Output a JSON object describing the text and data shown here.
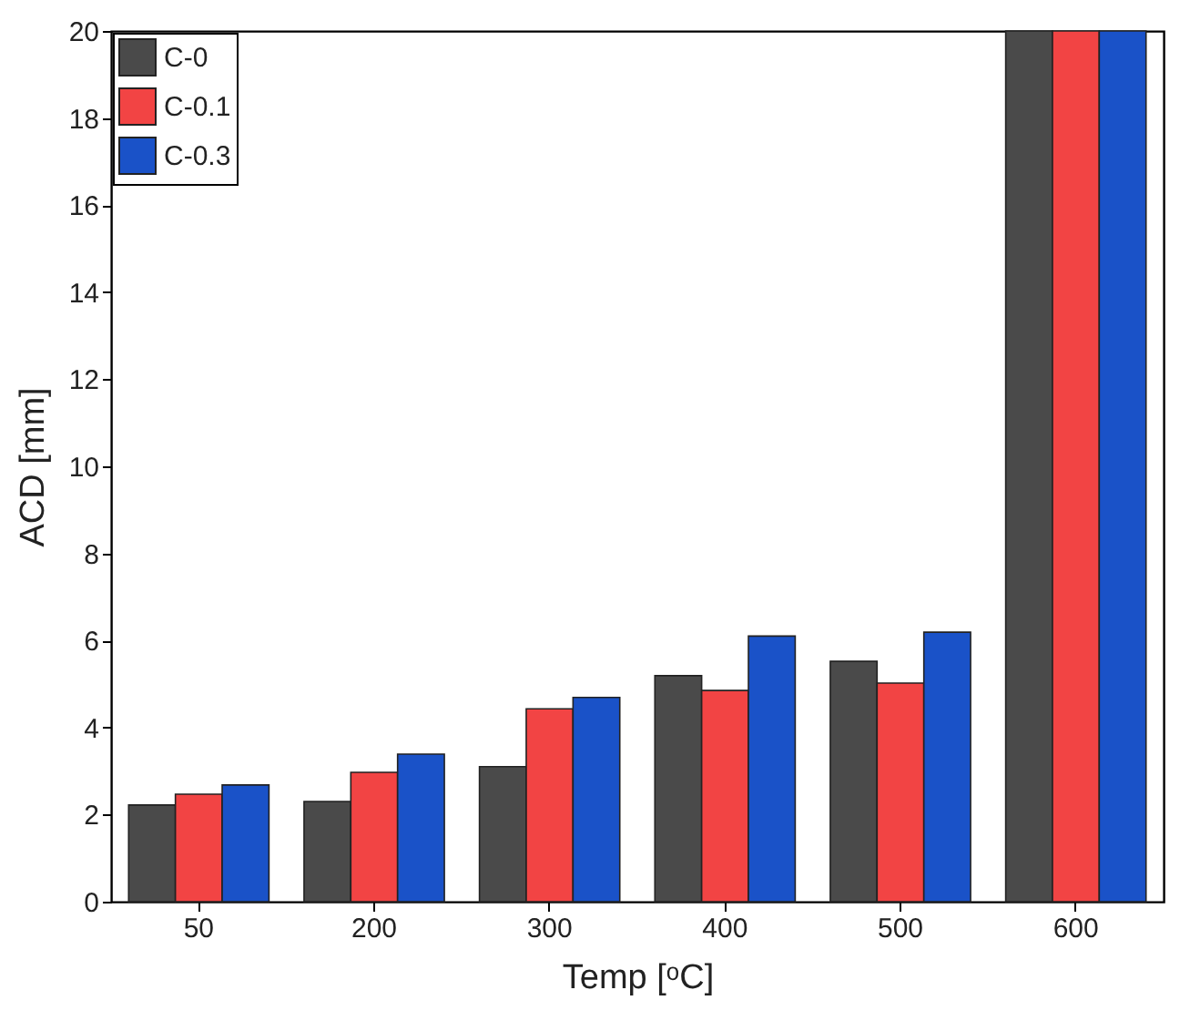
{
  "chart_data": {
    "type": "bar",
    "xlabel": "Temp [ᵒC]",
    "ylabel": "ACD [mm]",
    "categories": [
      "50",
      "200",
      "300",
      "400",
      "500",
      "600"
    ],
    "series": [
      {
        "name": "C-0",
        "color": "#4a4a4a",
        "values": [
          2.22,
          2.3,
          3.1,
          5.19,
          5.52,
          20
        ]
      },
      {
        "name": "C-0.1",
        "color": "#f24444",
        "values": [
          2.47,
          2.97,
          4.43,
          4.85,
          5.02,
          20
        ]
      },
      {
        "name": "C-0.3",
        "color": "#1a52c8",
        "values": [
          2.68,
          3.39,
          4.69,
          6.1,
          6.19,
          20
        ]
      }
    ],
    "ylim": [
      0,
      20
    ],
    "yticks": [
      0,
      2,
      4,
      6,
      8,
      10,
      12,
      14,
      16,
      18,
      20
    ],
    "grid": false,
    "legend": "top left"
  }
}
